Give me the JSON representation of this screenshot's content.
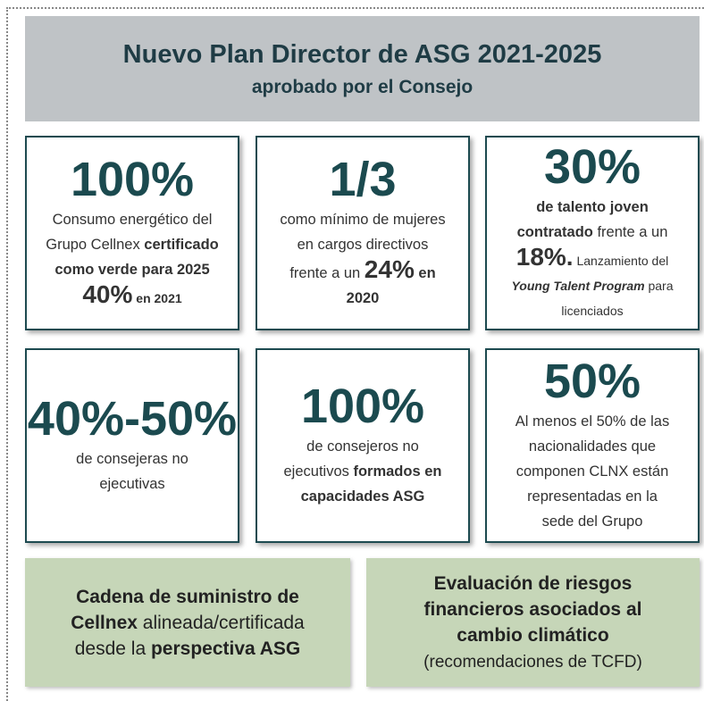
{
  "header": {
    "title": "Nuevo Plan Director de ASG 2021-2025",
    "subtitle": "aprobado por el Consejo"
  },
  "cards": [
    {
      "headline": "100%",
      "lines": [
        [
          {
            "text": "Consumo energético del"
          }
        ],
        [
          {
            "text": "Grupo Cellnex "
          },
          {
            "text": "certificado",
            "bold": true
          }
        ],
        [
          {
            "text": "como verde para 2025",
            "bold": true
          }
        ],
        [
          {
            "text": "40%",
            "bold": true,
            "size": "big"
          },
          {
            "text": " en 2021",
            "bold": true,
            "size": "small"
          }
        ]
      ]
    },
    {
      "headline": "1/3",
      "lines": [
        [
          {
            "text": "como mínimo de mujeres"
          }
        ],
        [
          {
            "text": "en cargos directivos"
          }
        ],
        [
          {
            "text": "frente a un "
          },
          {
            "text": "24%",
            "bold": true,
            "size": "big"
          },
          {
            "text": " en",
            "bold": true
          }
        ],
        [
          {
            "text": "2020",
            "bold": true
          }
        ]
      ]
    },
    {
      "headline": "30%",
      "lines": [
        [
          {
            "text": "de talento joven",
            "bold": true
          }
        ],
        [
          {
            "text": "contratado",
            "bold": true
          },
          {
            "text": " frente a un"
          }
        ],
        [
          {
            "text": "18%.",
            "bold": true,
            "size": "big"
          },
          {
            "text": " Lanzamiento del",
            "size": "small"
          }
        ],
        [
          {
            "text": "Young Talent Program",
            "bold": true,
            "italic": true,
            "size": "small"
          },
          {
            "text": " para",
            "size": "small"
          }
        ],
        [
          {
            "text": "licenciados",
            "size": "small"
          }
        ]
      ]
    },
    {
      "headline": "40%-50%",
      "lines": [
        [
          {
            "text": "de consejeras no"
          }
        ],
        [
          {
            "text": "ejecutivas"
          }
        ]
      ]
    },
    {
      "headline": "100%",
      "lines": [
        [
          {
            "text": "de consejeros no"
          }
        ],
        [
          {
            "text": "ejecutivos "
          },
          {
            "text": "formados en",
            "bold": true
          }
        ],
        [
          {
            "text": "capacidades ASG",
            "bold": true
          }
        ]
      ]
    },
    {
      "headline": "50%",
      "lines": [
        [
          {
            "text": "Al menos el 50% de las"
          }
        ],
        [
          {
            "text": "nacionalidades que"
          }
        ],
        [
          {
            "text": "componen CLNX están"
          }
        ],
        [
          {
            "text": "representadas en la"
          }
        ],
        [
          {
            "text": "sede del Grupo"
          }
        ]
      ]
    }
  ],
  "boxes": [
    {
      "lines": [
        [
          {
            "text": "Cadena de suministro de",
            "bold": true
          }
        ],
        [
          {
            "text": "Cellnex",
            "bold": true
          },
          {
            "text": " alineada/certificada"
          }
        ],
        [
          {
            "text": "desde la "
          },
          {
            "text": "perspectiva ASG",
            "bold": true
          }
        ]
      ]
    },
    {
      "lines": [
        [
          {
            "text": "Evaluación de riesgos",
            "bold": true
          }
        ],
        [
          {
            "text": "financieros asociados al",
            "bold": true
          }
        ],
        [
          {
            "text": "cambio climático",
            "bold": true
          }
        ],
        [
          {
            "text": "(recomendaciones de TCFD)",
            "size": "small"
          }
        ]
      ]
    }
  ]
}
